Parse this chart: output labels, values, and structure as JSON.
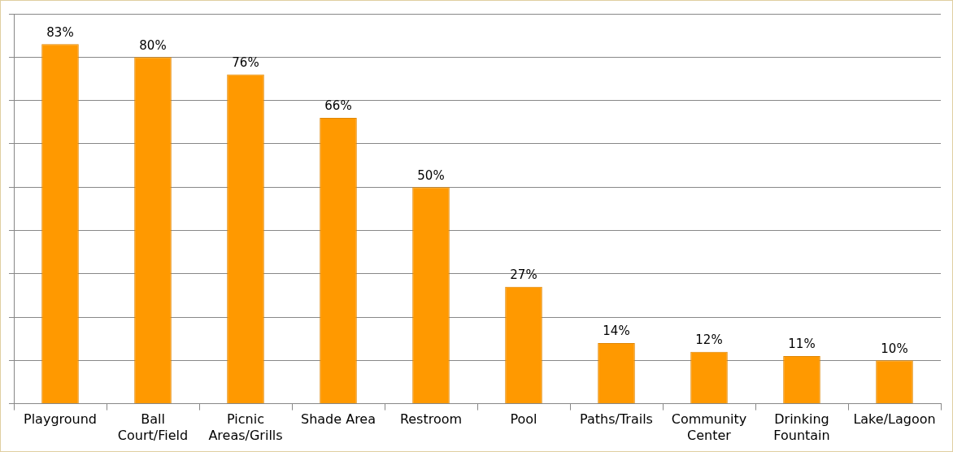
{
  "chart_data": {
    "type": "bar",
    "categories": [
      "Playground",
      "Ball\nCourt/Field",
      "Picnic\nAreas/Grills",
      "Shade Area",
      "Restroom",
      "Pool",
      "Paths/Trails",
      "Community\nCenter",
      "Drinking\nFountain",
      "Lake/Lagoon"
    ],
    "values": [
      83,
      80,
      76,
      66,
      50,
      27,
      14,
      12,
      11,
      10
    ],
    "value_labels": [
      "83%",
      "80%",
      "76%",
      "66%",
      "50%",
      "27%",
      "14%",
      "12%",
      "11%",
      "10%"
    ],
    "color": "#ff9900",
    "ylim": [
      0,
      90
    ],
    "yticks": [
      {
        "value": 0,
        "label": null
      },
      {
        "value": 10,
        "label": null
      },
      {
        "value": 20,
        "label": null
      },
      {
        "value": 30,
        "label": null
      },
      {
        "value": 40,
        "label": null
      },
      {
        "value": 50,
        "label": null
      },
      {
        "value": 60,
        "label": null
      },
      {
        "value": 70,
        "label": null
      },
      {
        "value": 80,
        "label": null
      },
      {
        "value": 90,
        "label": null
      }
    ],
    "grid": "y",
    "tick_labels": "x"
  }
}
